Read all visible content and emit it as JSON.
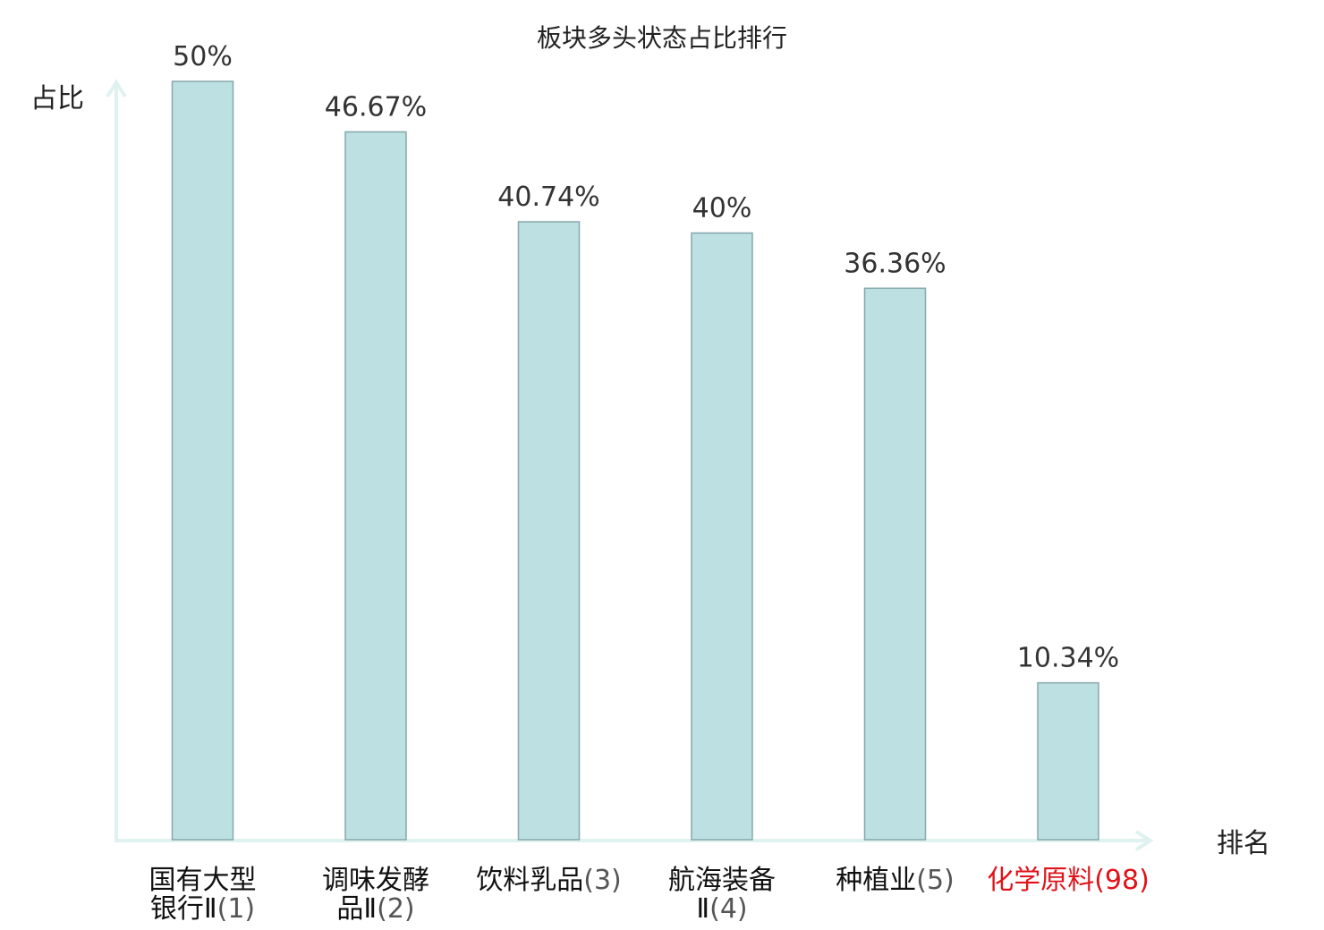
{
  "chart_data": {
    "type": "bar",
    "title": "板块多头状态占比排行",
    "ylabel": "占比",
    "xlabel": "排名",
    "ylim": [
      0,
      50
    ],
    "grid": false,
    "categories": [
      {
        "name_lines": [
          "国有大型",
          "银行Ⅱ"
        ],
        "rank": "(1)"
      },
      {
        "name_lines": [
          "调味发酵",
          "品Ⅱ"
        ],
        "rank": "(2)"
      },
      {
        "name_lines": [
          "饮料乳品"
        ],
        "rank": "(3)"
      },
      {
        "name_lines": [
          "航海装备",
          "Ⅱ"
        ],
        "rank": "(4)"
      },
      {
        "name_lines": [
          "种植业"
        ],
        "rank": "(5)"
      },
      {
        "name_lines": [
          "化学原料"
        ],
        "rank": "(98)",
        "highlight": true
      }
    ],
    "values": [
      50,
      46.67,
      40.74,
      40,
      36.36,
      10.34
    ],
    "value_labels": [
      "50%",
      "46.67%",
      "40.74%",
      "40%",
      "36.36%",
      "10.34%"
    ]
  },
  "colors": {
    "bar_fill": "#bde0e3",
    "bar_stroke": "#86a8ab",
    "axis": "#e0f2f0",
    "highlight": "#e0131a",
    "text": "#222222"
  }
}
